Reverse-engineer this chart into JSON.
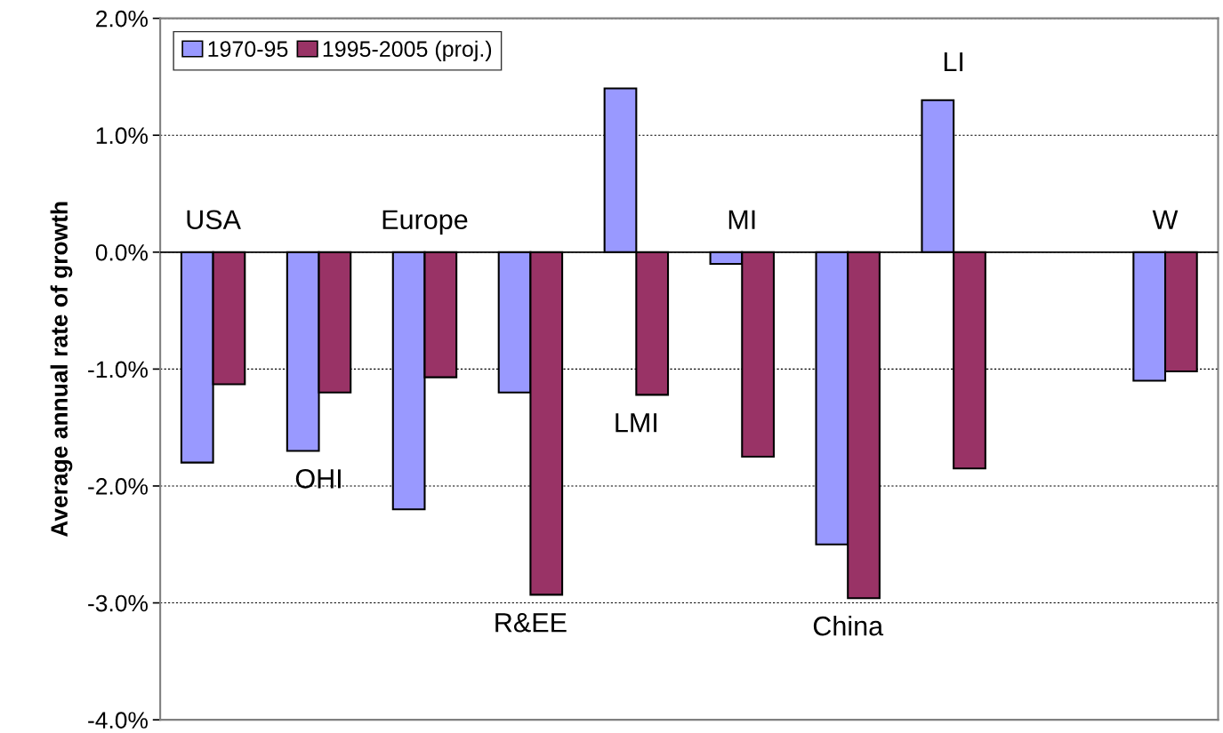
{
  "chart_data": {
    "type": "bar",
    "ylabel": "Average annual rate of growth",
    "categories": [
      "USA",
      "OHI",
      "Europe",
      "R&EE",
      "LMI",
      "MI",
      "China",
      "LI",
      null,
      "W"
    ],
    "series": [
      {
        "name": "1970-95",
        "color": "#9999ff",
        "values": [
          -1.8,
          -1.7,
          -2.2,
          -1.2,
          1.4,
          -0.1,
          -2.5,
          1.3,
          null,
          -1.1
        ]
      },
      {
        "name": "1995-2005 (proj.)",
        "color": "#993366",
        "values": [
          -1.13,
          -1.2,
          -1.07,
          -2.93,
          -1.22,
          -1.75,
          -2.96,
          -1.85,
          null,
          -1.02
        ]
      }
    ],
    "ylim": [
      -4.0,
      2.0
    ],
    "yticks": [
      {
        "value": -4.0,
        "label": "-4.0%"
      },
      {
        "value": -3.0,
        "label": "-3.0%"
      },
      {
        "value": -2.0,
        "label": "-2.0%"
      },
      {
        "value": -1.0,
        "label": "-1.0%"
      },
      {
        "value": 0.0,
        "label": "0.0%"
      },
      {
        "value": 1.0,
        "label": "1.0%"
      },
      {
        "value": 2.0,
        "label": "2.0%"
      }
    ],
    "grid": "y",
    "legend": "top left",
    "tick_labels": "y"
  }
}
